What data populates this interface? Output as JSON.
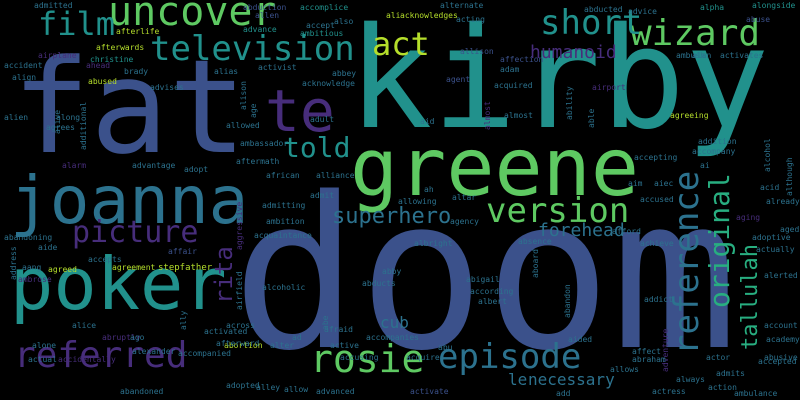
{
  "words": {
    "kirby": "kirby",
    "doom": "doom",
    "fat": "fat",
    "greene": "greene",
    "joanna": "joanna",
    "poker": "poker",
    "uncover": "uncover",
    "film": "film",
    "television": "television",
    "te": "te",
    "wizard": "wizard",
    "short": "short",
    "act": "act",
    "told": "told",
    "picture": "picture",
    "version": "version",
    "superhero": "superhero",
    "referred": "referred",
    "rosie": "rosie",
    "episode": "episode",
    "reference": "reference",
    "original": "original",
    "tallulah": "tallulah",
    "rita": "rita",
    "forehead": "forehead",
    "humanoid": "humanoid",
    "cub": "cub",
    "le": "le",
    "necessary": "necessary",
    "admitted": "admitted",
    "abduction": "abduction",
    "allen": "allen",
    "accomplice": "accomplice",
    "alternate": "alternate",
    "abducted": "abducted",
    "advice": "advice",
    "alpha": "alpha",
    "alongside": "alongside",
    "afterlife": "afterlife",
    "advance": "advance",
    "accept": "accept",
    "also": "also",
    "ali": "ali",
    "acknowledges": "acknowledges",
    "acting": "acting",
    "abuse": "abuse",
    "afterwards": "afterwards",
    "christine": "christine",
    "ambitious": "ambitious",
    "allison": "allison",
    "adam": "adam",
    "affection": "affection",
    "alan": "alan",
    "ambush": "ambush",
    "activates": "activates",
    "airplane": "airplane",
    "accident": "accident",
    "align": "align",
    "brady": "brady",
    "alias": "alias",
    "activist": "activist",
    "abbey": "abbey",
    "acknowledge": "acknowledge",
    "agent": "agent",
    "abused": "abused",
    "advises": "advises",
    "alison": "alison",
    "acquired": "acquired",
    "airport": "airport",
    "alien": "alien",
    "alive": "alive",
    "along": "along",
    "agrees": "agrees",
    "additional": "additional",
    "age": "age",
    "adult": "adult",
    "aid": "aid",
    "almost": "almost",
    "ability": "ability",
    "able": "able",
    "agreeing": "agreeing",
    "alarm": "alarm",
    "allowed": "allowed",
    "ambassador": "ambassador",
    "alliance": "alliance",
    "addition": "addition",
    "accompany": "accompany",
    "alcohol": "alcohol",
    "advantage": "advantage",
    "adopt": "adopt",
    "accepting": "accepting",
    "ai": "ai",
    "already": "already",
    "aftermath": "aftermath",
    "african": "african",
    "acid": "acid",
    "although": "although",
    "admit": "admit",
    "ah": "ah",
    "altar": "altar",
    "aim": "aim",
    "aiec": "aiec",
    "accused": "accused",
    "admitting": "admitting",
    "allowing": "allowing",
    "agency": "agency",
    "afford": "afford",
    "aging": "aging",
    "abandoning": "abandoning",
    "aide": "aide",
    "aggressive": "aggressive",
    "ambition": "ambition",
    "acquaintance": "acquaintance",
    "albright": "albright",
    "absence": "absence",
    "achieve": "achieve",
    "aged": "aged",
    "adoptive": "adoptive",
    "actually": "actually",
    "address": "address",
    "aang": "aang",
    "agreed": "agreed",
    "accepts": "accepts",
    "agreement": "agreement",
    "affair": "affair",
    "stepfather": "stepfather",
    "airfield": "airfield",
    "abby": "abby",
    "abducts": "abducts",
    "abigail": "abigail",
    "aboard": "aboard",
    "alamein": "alamein",
    "alerted": "alerted",
    "ambrose": "ambrose",
    "ahead": "ahead",
    "alcoholic": "alcoholic",
    "abe": "abe",
    "according": "according",
    "albert": "albert",
    "abandon": "abandon",
    "addict": "addict",
    "account": "account",
    "academy": "academy",
    "alice": "alice",
    "ally": "ally",
    "across": "across",
    "afraid": "afraid",
    "accompanies": "accompanies",
    "aided": "aided",
    "abruptly": "abruptly",
    "ago": "ago",
    "activated": "activated",
    "ad": "ad",
    "alone": "alone",
    "abortion": "abortion",
    "alter": "alter",
    "active": "active",
    "abu": "abu",
    "affect": "affect",
    "adventure": "adventure",
    "actor": "actor",
    "accepted": "accepted",
    "actual": "actual",
    "accidentally": "accidentally",
    "alexander": "alexander",
    "accompanied": "accompanied",
    "afterward": "afterward",
    "accusing": "accusing",
    "acquires": "acquires",
    "allows": "allows",
    "abraham": "abraham",
    "always": "always",
    "admits": "admits",
    "abusive": "abusive",
    "abandoned": "abandoned",
    "adopted": "adopted",
    "alley": "alley",
    "allow": "allow",
    "advanced": "advanced",
    "activate": "activate",
    "actress": "actress",
    "action": "action",
    "ambulance": "ambulance",
    "add": "add"
  },
  "colors": {
    "background": "#000000",
    "indigo": "#3b518b",
    "steel": "#2c728e",
    "teal": "#21918c",
    "greenteal": "#28ae80",
    "green": "#5ec962",
    "purple": "#472d7b",
    "blue": "#3e4989",
    "darkpurple": "#440154",
    "yellowgreen": "#b5de2b",
    "yellow": "#fde725"
  }
}
